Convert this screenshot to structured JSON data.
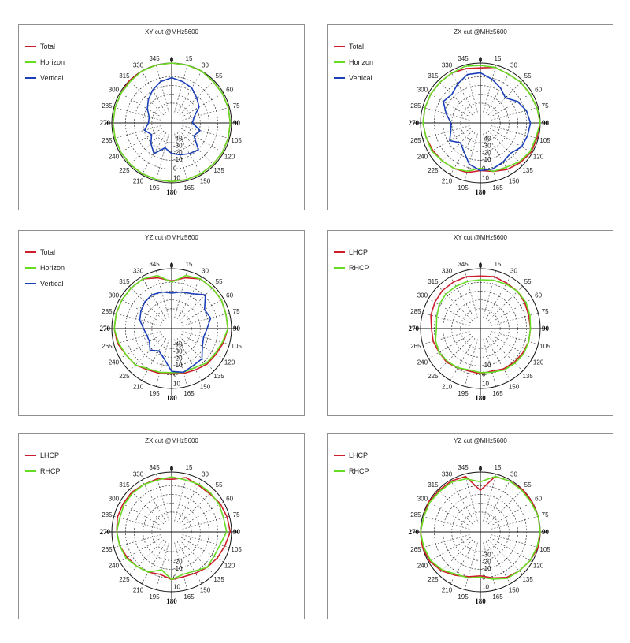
{
  "colors": {
    "total": "#cc1e2c",
    "horizon": "#66dd22",
    "vertical": "#1a3fb8",
    "lhcp": "#cc1e2c",
    "rhcp": "#66dd22"
  },
  "angle_labels": [
    "0",
    "15",
    "30",
    "55",
    "60",
    "75",
    "90",
    "105",
    "120",
    "135",
    "150",
    "165",
    "180",
    "195",
    "210",
    "225",
    "240",
    "265",
    "270",
    "285",
    "300",
    "315",
    "330",
    "345"
  ],
  "chart_data": [
    {
      "type": "polar",
      "title": "XY cut @MHz5600",
      "radial_labels": [
        "-40",
        "-30",
        "-20",
        "-10",
        "0",
        "10"
      ],
      "legend_position": "top-left",
      "series": [
        {
          "name": "Total",
          "color": "#cc1e2c",
          "values": [
            0,
            0,
            0,
            -1,
            -1,
            -1,
            -1,
            -1,
            -1,
            -1,
            -1,
            -1,
            -1,
            -1,
            -1,
            -1,
            -1,
            -1,
            -1,
            -1,
            -1,
            0,
            0,
            0
          ]
        },
        {
          "name": "Horizon",
          "color": "#66dd22",
          "values": [
            0,
            0,
            0,
            -1,
            -1,
            -1,
            -1,
            -1,
            -1,
            -1,
            -1,
            -1,
            -1,
            -1,
            -1,
            -1,
            -1,
            -1,
            -1,
            -1,
            -1,
            -1,
            0,
            0
          ]
        },
        {
          "name": "Vertical",
          "color": "#1a3fb8",
          "values": [
            -12,
            -14,
            -16,
            -20,
            -23,
            -30,
            -32,
            -25,
            -28,
            -18,
            -20,
            -22,
            -24,
            -28,
            -20,
            -25,
            -30,
            -26,
            -30,
            -30,
            -26,
            -22,
            -18,
            -14
          ]
        }
      ]
    },
    {
      "type": "polar",
      "title": "ZX cut @MHz5600",
      "radial_labels": [
        "-40",
        "-30",
        "-20",
        "-10",
        "0",
        "10"
      ],
      "legend_position": "top-left",
      "series": [
        {
          "name": "Total",
          "color": "#cc1e2c",
          "values": [
            -4,
            -2,
            -3,
            -2,
            -2,
            -1,
            0,
            -1,
            -1,
            -3,
            -5,
            -8,
            -10,
            -7,
            -6,
            -5,
            -4,
            -3,
            -2,
            -2,
            -2,
            -2,
            -2,
            -3
          ]
        },
        {
          "name": "Horizon",
          "color": "#66dd22",
          "values": [
            -2,
            -2,
            -3,
            -2,
            -2,
            -1,
            0,
            -2,
            -2,
            -4,
            -7,
            -8,
            -12,
            -8,
            -6,
            -5,
            -3,
            -3,
            -2,
            -2,
            -2,
            -2,
            -2,
            -1
          ]
        },
        {
          "name": "Vertical",
          "color": "#1a3fb8",
          "values": [
            -8,
            -12,
            -16,
            -20,
            -14,
            -10,
            -8,
            -9,
            -10,
            -14,
            -12,
            -10,
            -10,
            -14,
            -22,
            -26,
            -20,
            -24,
            -25,
            -20,
            -14,
            -16,
            -12,
            -8
          ]
        }
      ]
    },
    {
      "type": "polar",
      "title": "YZ cut @MHz5600",
      "radial_labels": [
        "-40",
        "-30",
        "-20",
        "-10",
        "0",
        "10"
      ],
      "legend_position": "top-left",
      "series": [
        {
          "name": "Total",
          "color": "#cc1e2c",
          "values": [
            -10,
            -6,
            -2,
            -2,
            -2,
            -3,
            -3,
            -5,
            -7,
            -8,
            -10,
            -11,
            -12,
            -11,
            -10,
            -7,
            -6,
            -3,
            -2,
            -2,
            -2,
            -2,
            -2,
            -6
          ]
        },
        {
          "name": "Horizon",
          "color": "#66dd22",
          "values": [
            -11,
            -4,
            -2,
            -2,
            -2,
            -3,
            -3,
            -6,
            -8,
            -9,
            -12,
            -12,
            -13,
            -12,
            -11,
            -7,
            -6,
            -4,
            -2,
            -2,
            -2,
            -2,
            -2,
            -4
          ]
        },
        {
          "name": "Vertical",
          "color": "#1a3fb8",
          "values": [
            -20,
            -18,
            -16,
            -10,
            -18,
            -16,
            -20,
            -22,
            -20,
            -14,
            -14,
            -12,
            -14,
            -24,
            -28,
            -24,
            -28,
            -28,
            -26,
            -22,
            -20,
            -18,
            -17,
            -18
          ]
        }
      ]
    },
    {
      "type": "polar",
      "title": "XY cut @MHz5600",
      "radial_labels": [
        "-10",
        "0",
        "10"
      ],
      "legend_position": "top-left",
      "series": [
        {
          "name": "LHCP",
          "color": "#cc1e2c",
          "values": [
            -6,
            -5,
            -6,
            -6,
            -7,
            -8,
            -8,
            -8,
            -9,
            -10,
            -11,
            -13,
            -12,
            -13,
            -12,
            -10,
            -10,
            -9,
            -9,
            -7,
            -6,
            -5,
            -5,
            -5
          ]
        },
        {
          "name": "RHCP",
          "color": "#66dd22",
          "values": [
            -9,
            -8,
            -7,
            -6,
            -6,
            -7,
            -8,
            -8,
            -8,
            -9,
            -10,
            -12,
            -13,
            -14,
            -12,
            -11,
            -10,
            -11,
            -13,
            -12,
            -10,
            -9,
            -9,
            -9
          ]
        }
      ]
    },
    {
      "type": "polar",
      "title": "ZX cut @MHz5600",
      "radial_labels": [
        "-20",
        "-10",
        "0",
        "10"
      ],
      "legend_position": "top-left",
      "series": [
        {
          "name": "LHCP",
          "color": "#cc1e2c",
          "values": [
            -6,
            -3,
            -5,
            -5,
            -3,
            -2,
            -1,
            -4,
            -6,
            -8,
            -10,
            -11,
            -10,
            -13,
            -11,
            -9,
            -7,
            -5,
            -4,
            -3,
            -3,
            -3,
            -4,
            -4
          ]
        },
        {
          "name": "RHCP",
          "color": "#66dd22",
          "values": [
            -4,
            -5,
            -4,
            -4,
            -4,
            -5,
            -4,
            -8,
            -9,
            -8,
            -12,
            -13,
            -10,
            -17,
            -11,
            -9,
            -6,
            -5,
            -4,
            -5,
            -4,
            -4,
            -4,
            -5
          ]
        }
      ]
    },
    {
      "type": "polar",
      "title": "YZ cut @MHz5600",
      "radial_labels": [
        "-30",
        "-20",
        "-10",
        "0",
        "10"
      ],
      "legend_position": "top-left",
      "series": [
        {
          "name": "LHCP",
          "color": "#cc1e2c",
          "values": [
            -15,
            -2,
            -1,
            0,
            0,
            1,
            0,
            0,
            -2,
            -4,
            -6,
            -10,
            -13,
            -11,
            -8,
            -4,
            -1,
            0,
            0,
            -1,
            0,
            -1,
            -1,
            -2
          ]
        },
        {
          "name": "RHCP",
          "color": "#66dd22",
          "values": [
            -8,
            -2,
            -1,
            -1,
            -1,
            0,
            0,
            -1,
            -2,
            -4,
            -5,
            -9,
            -12,
            -10,
            -9,
            -5,
            -2,
            -1,
            0,
            -1,
            -1,
            -2,
            -2,
            -4
          ]
        }
      ]
    }
  ]
}
